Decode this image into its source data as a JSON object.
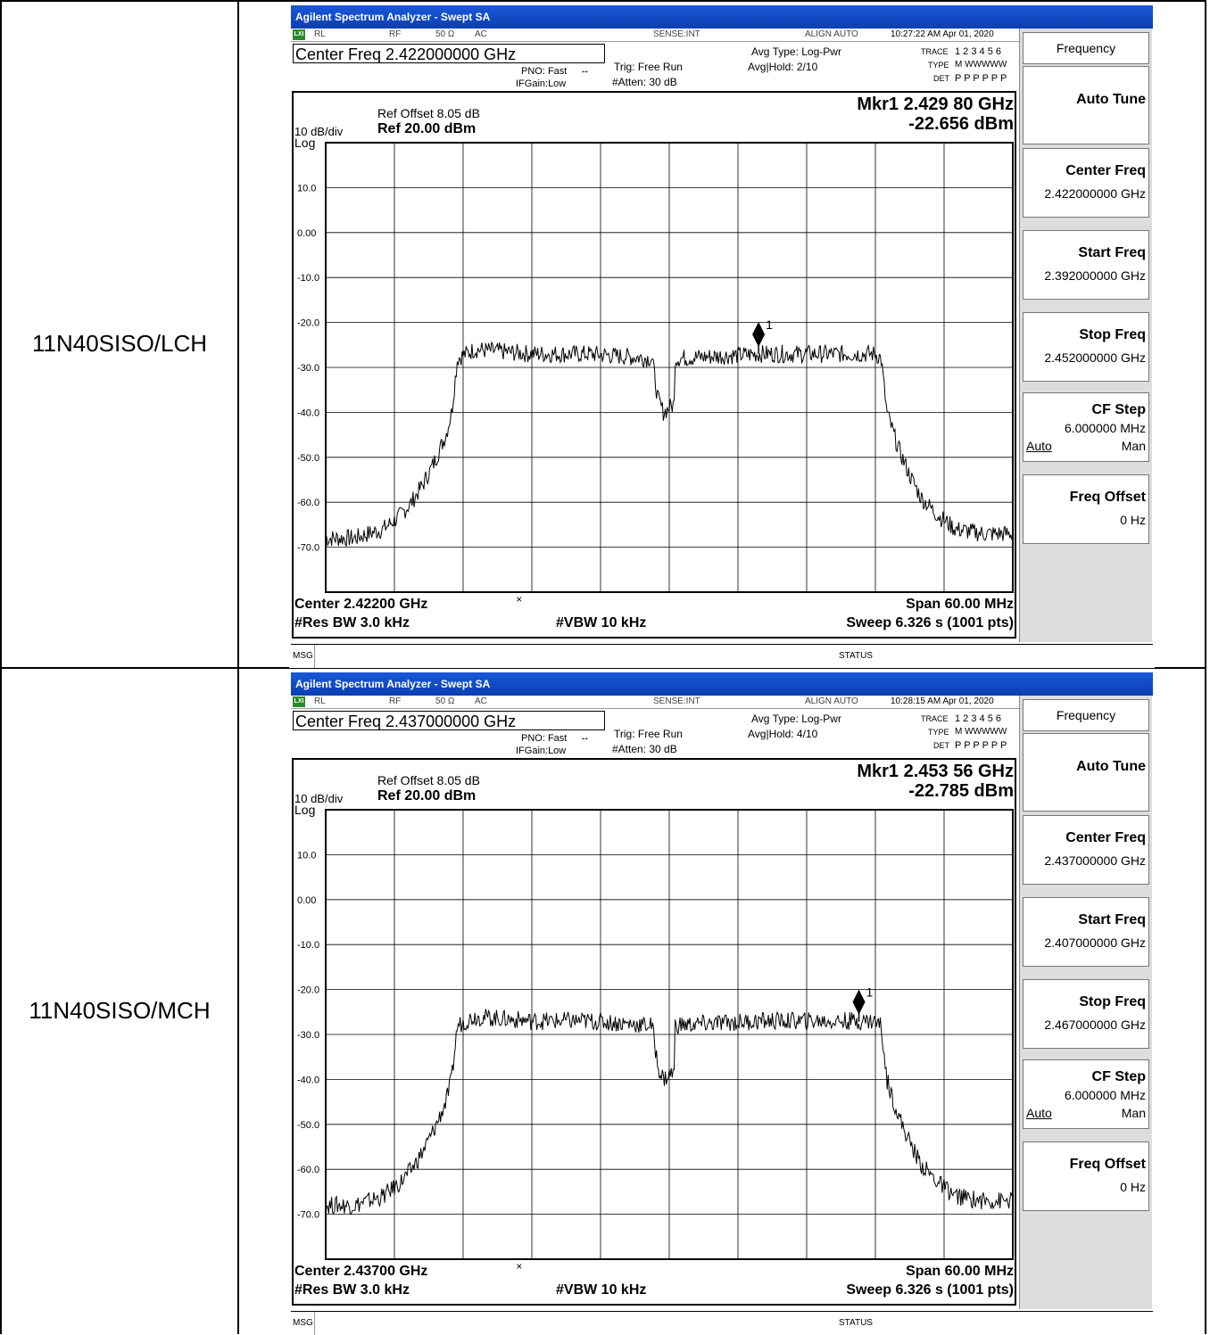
{
  "rows": [
    {
      "label": "11N40SISO/LCH",
      "window_title": "Agilent Spectrum Analyzer - Swept SA",
      "status_bar": {
        "lxi": "LXI",
        "rl": "RL",
        "rf": "RF",
        "impedance": "50 Ω",
        "coupling": "AC",
        "sense": "SENSE:INT",
        "align": "ALIGN AUTO",
        "datetime": "10:27:22 AM Apr 01, 2020"
      },
      "center_freq_box": "Center Freq 2.422000000 GHz",
      "pno": "PNO: Fast",
      "ifgain": "IFGain:Low",
      "trig": "Trig: Free Run",
      "atten": "#Atten: 30 dB",
      "avg_type": "Avg Type: Log-Pwr",
      "avg_hold": "Avg|Hold: 2/10",
      "trace_label": "TRACE",
      "trace_nums": "1 2 3 4 5 6",
      "type_label": "TYPE",
      "type_val": "M WWWWW",
      "det_label": "DET",
      "det_val": "P P P P P P",
      "ref_offset": "Ref Offset 8.05 dB",
      "ref_level": "Ref 20.00 dBm",
      "scale": "10 dB/div",
      "scale_type": "Log",
      "marker_freq": "Mkr1 2.429 80 GHz",
      "marker_amp": "-22.656 dBm",
      "footer_center": "Center 2.42200 GHz",
      "footer_span": "Span 60.00 MHz",
      "footer_rbw": "#Res BW 3.0 kHz",
      "footer_vbw": "#VBW 10 kHz",
      "footer_sweep": "Sweep  6.326 s (1001 pts)",
      "msg": "MSG",
      "status": "STATUS",
      "softkeys": {
        "menu": "Frequency",
        "auto_tune": "Auto Tune",
        "center_freq": "Center Freq",
        "center_freq_val": "2.422000000 GHz",
        "start_freq": "Start Freq",
        "start_freq_val": "2.392000000 GHz",
        "stop_freq": "Stop Freq",
        "stop_freq_val": "2.452000000 GHz",
        "cf_step": "CF Step",
        "cf_step_val": "6.000000 MHz",
        "cf_auto": "Auto",
        "cf_man": "Man",
        "freq_offset": "Freq Offset",
        "freq_offset_val": "0 Hz"
      },
      "chart_data": {
        "type": "line",
        "x_unit": "GHz",
        "y_unit": "dBm",
        "xlim": [
          2.392,
          2.452
        ],
        "ylim": [
          -80,
          20
        ],
        "y_tick_labels": [
          "10.0",
          "0.00",
          "-10.0",
          "-20.0",
          "-30.0",
          "-40.0",
          "-50.0",
          "-60.0",
          "-70.0"
        ],
        "y_ticks": [
          10,
          0,
          -10,
          -20,
          -30,
          -40,
          -50,
          -60,
          -70
        ],
        "grid": true,
        "marker": {
          "label": "1",
          "x": 2.4298,
          "y": -22.656
        },
        "series": [
          {
            "x": [
              2.392,
              2.3945,
              2.397,
              2.3985,
              2.3995,
              2.4005,
              2.4015,
              2.4025,
              2.403,
              2.4035,
              2.405,
              2.41,
              2.415,
              2.4205,
              2.421,
              2.4215,
              2.4225,
              2.4225,
              2.43,
              2.435,
              2.44,
              2.4405,
              2.441,
              2.442,
              2.443,
              2.444,
              2.4455,
              2.447,
              2.4495,
              2.452
            ],
            "y": [
              -68,
              -68,
              -66,
              -63,
              -60,
              -56,
              -51,
              -45,
              -40,
              -28,
              -26,
              -27,
              -27,
              -28,
              -37,
              -40,
              -38,
              -28,
              -27,
              -27,
              -27,
              -28,
              -40,
              -48,
              -54,
              -59,
              -63,
              -66,
              -67,
              -67
            ]
          }
        ]
      }
    },
    {
      "label": "11N40SISO/MCH",
      "window_title": "Agilent Spectrum Analyzer - Swept SA",
      "status_bar": {
        "lxi": "LXI",
        "rl": "RL",
        "rf": "RF",
        "impedance": "50 Ω",
        "coupling": "AC",
        "sense": "SENSE:INT",
        "align": "ALIGN AUTO",
        "datetime": "10:28:15 AM Apr 01, 2020"
      },
      "center_freq_box": "Center Freq 2.437000000 GHz",
      "pno": "PNO: Fast",
      "ifgain": "IFGain:Low",
      "trig": "Trig: Free Run",
      "atten": "#Atten: 30 dB",
      "avg_type": "Avg Type: Log-Pwr",
      "avg_hold": "Avg|Hold: 4/10",
      "trace_label": "TRACE",
      "trace_nums": "1 2 3 4 5 6",
      "type_label": "TYPE",
      "type_val": "M WWWWW",
      "det_label": "DET",
      "det_val": "P P P P P P",
      "ref_offset": "Ref Offset 8.05 dB",
      "ref_level": "Ref 20.00 dBm",
      "scale": "10 dB/div",
      "scale_type": "Log",
      "marker_freq": "Mkr1 2.453 56 GHz",
      "marker_amp": "-22.785 dBm",
      "footer_center": "Center 2.43700 GHz",
      "footer_span": "Span 60.00 MHz",
      "footer_rbw": "#Res BW 3.0 kHz",
      "footer_vbw": "#VBW 10 kHz",
      "footer_sweep": "Sweep  6.326 s (1001 pts)",
      "msg": "MSG",
      "status": "STATUS",
      "softkeys": {
        "menu": "Frequency",
        "auto_tune": "Auto Tune",
        "center_freq": "Center Freq",
        "center_freq_val": "2.437000000 GHz",
        "start_freq": "Start Freq",
        "start_freq_val": "2.407000000 GHz",
        "stop_freq": "Stop Freq",
        "stop_freq_val": "2.467000000 GHz",
        "cf_step": "CF Step",
        "cf_step_val": "6.000000 MHz",
        "cf_auto": "Auto",
        "cf_man": "Man",
        "freq_offset": "Freq Offset",
        "freq_offset_val": "0 Hz"
      },
      "chart_data": {
        "type": "line",
        "x_unit": "GHz",
        "y_unit": "dBm",
        "xlim": [
          2.407,
          2.467
        ],
        "ylim": [
          -80,
          20
        ],
        "y_tick_labels": [
          "10.0",
          "0.00",
          "-10.0",
          "-20.0",
          "-30.0",
          "-40.0",
          "-50.0",
          "-60.0",
          "-70.0"
        ],
        "y_ticks": [
          10,
          0,
          -10,
          -20,
          -30,
          -40,
          -50,
          -60,
          -70
        ],
        "grid": true,
        "marker": {
          "label": "1",
          "x": 2.45356,
          "y": -22.785
        },
        "series": [
          {
            "x": [
              2.407,
              2.4095,
              2.412,
              2.4135,
              2.4145,
              2.4155,
              2.4165,
              2.4175,
              2.418,
              2.4185,
              2.42,
              2.425,
              2.43,
              2.4355,
              2.436,
              2.4365,
              2.4375,
              2.4375,
              2.445,
              2.45,
              2.455,
              2.4555,
              2.456,
              2.457,
              2.458,
              2.459,
              2.4605,
              2.462,
              2.4645,
              2.467
            ],
            "y": [
              -68,
              -68,
              -66,
              -63,
              -60,
              -56,
              -51,
              -45,
              -40,
              -28,
              -26,
              -27,
              -27,
              -28,
              -37,
              -40,
              -38,
              -28,
              -27,
              -27,
              -27,
              -28,
              -40,
              -48,
              -54,
              -59,
              -63,
              -66,
              -67,
              -67
            ]
          }
        ]
      }
    }
  ]
}
